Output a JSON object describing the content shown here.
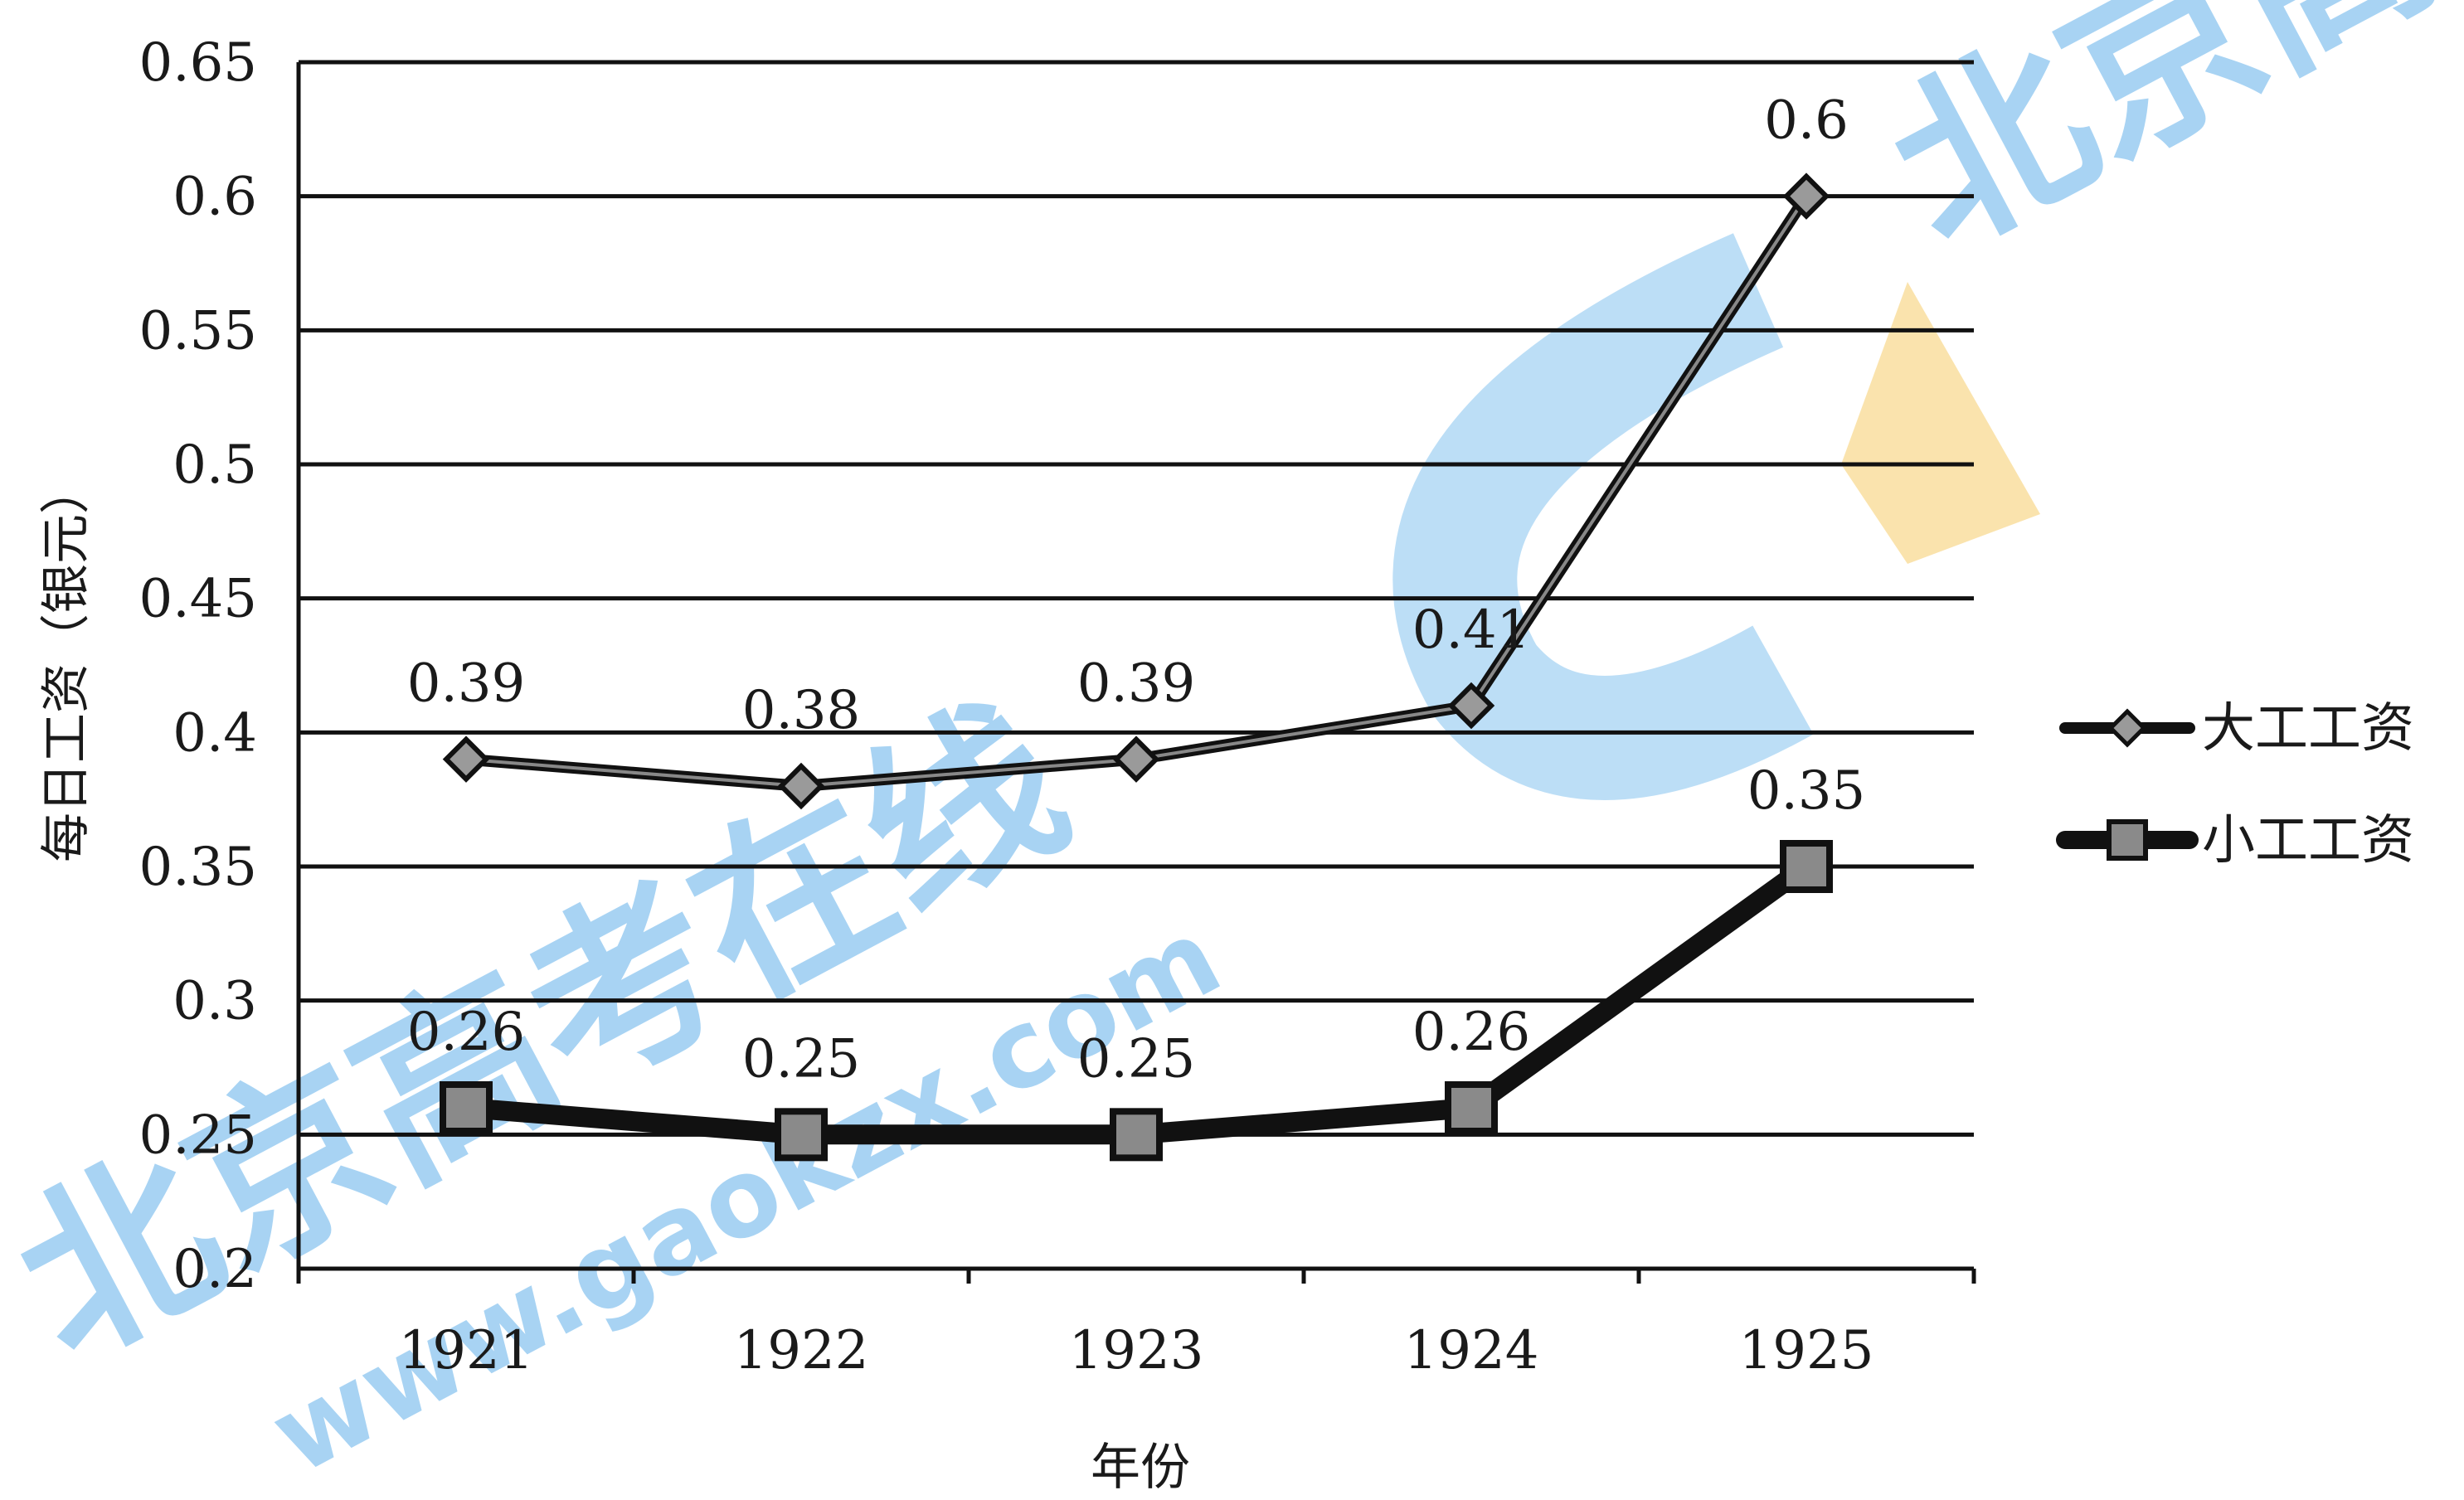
{
  "chart_data": {
    "type": "line",
    "categories": [
      "1921",
      "1922",
      "1923",
      "1924",
      "1925"
    ],
    "series": [
      {
        "name": "大工工资",
        "values": [
          0.39,
          0.38,
          0.39,
          0.41,
          0.6
        ],
        "labels": [
          "0.39",
          "0.38",
          "0.39",
          "0.41",
          "0.6"
        ],
        "marker": "diamond"
      },
      {
        "name": "小工工资",
        "values": [
          0.26,
          0.25,
          0.25,
          0.26,
          0.35
        ],
        "labels": [
          "0.26",
          "0.25",
          "0.25",
          "0.26",
          "0.35"
        ],
        "marker": "square"
      }
    ],
    "xlabel": "年份",
    "ylabel": "每日工资（银元）",
    "ylim": [
      0.2,
      0.65
    ],
    "yticks": [
      0.2,
      0.25,
      0.3,
      0.35,
      0.4,
      0.45,
      0.5,
      0.55,
      0.6,
      0.65
    ],
    "ytick_labels": [
      "0.2",
      "0.25",
      "0.3",
      "0.35",
      "0.4",
      "0.45",
      "0.5",
      "0.55",
      "0.6",
      "0.65"
    ],
    "grid": true,
    "legend": "right"
  },
  "watermark": {
    "texts": [
      "北京高考在线",
      "www.gaokzx.com"
    ],
    "colors": {
      "blue": "#3fa0e6",
      "orange": "#f5c24a"
    }
  }
}
